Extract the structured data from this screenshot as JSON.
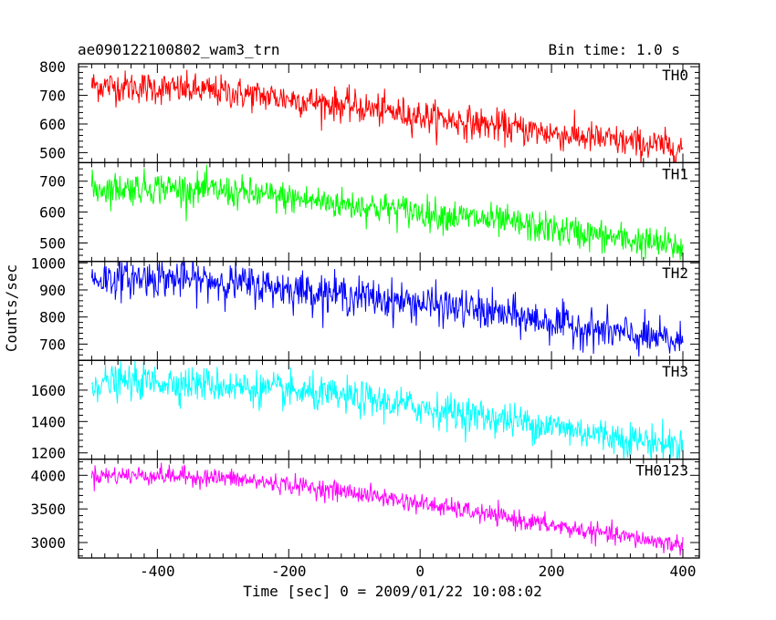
{
  "header": {
    "title": "ae090122100802_wam3_trn",
    "bin_time": "Bin time: 1.0 s"
  },
  "chart_data": {
    "type": "line",
    "layout": "stacked panels sharing x axis",
    "xlabel": "Time [sec] 0 = 2009/01/22 10:08:02",
    "ylabel": "Counts/sec",
    "xlim": [
      -520,
      425
    ],
    "x_range": [
      -500,
      400
    ],
    "x_step": 1.0,
    "x_ticks": [
      -400,
      -200,
      0,
      200,
      400
    ],
    "grid": false,
    "panels": [
      {
        "name": "TH0",
        "color": "#ff0000",
        "ylim": [
          465,
          810
        ],
        "yticks": [
          500,
          600,
          700,
          800
        ],
        "trend_x": [
          -500,
          -400,
          -300,
          -200,
          -100,
          0,
          100,
          200,
          300,
          400
        ],
        "trend_y": [
          735,
          725,
          712,
          688,
          660,
          628,
          598,
          568,
          540,
          515
        ],
        "noise": 28
      },
      {
        "name": "TH1",
        "color": "#00ff00",
        "ylim": [
          440,
          760
        ],
        "yticks": [
          500,
          600,
          700
        ],
        "trend_x": [
          -500,
          -400,
          -300,
          -200,
          -100,
          0,
          100,
          200,
          300,
          400
        ],
        "trend_y": [
          675,
          680,
          668,
          645,
          622,
          600,
          575,
          545,
          515,
          485
        ],
        "noise": 26
      },
      {
        "name": "TH2",
        "color": "#0000ff",
        "ylim": [
          640,
          1005
        ],
        "yticks": [
          700,
          800,
          900,
          1000
        ],
        "trend_x": [
          -500,
          -400,
          -300,
          -200,
          -100,
          0,
          100,
          200,
          300,
          400
        ],
        "trend_y": [
          940,
          945,
          930,
          905,
          878,
          850,
          820,
          780,
          740,
          705
        ],
        "noise": 35
      },
      {
        "name": "TH3",
        "color": "#00ffff",
        "ylim": [
          1160,
          1790
        ],
        "yticks": [
          1200,
          1400,
          1600
        ],
        "trend_x": [
          -500,
          -400,
          -300,
          -200,
          -100,
          0,
          100,
          200,
          300,
          400
        ],
        "trend_y": [
          1645,
          1655,
          1630,
          1590,
          1550,
          1490,
          1430,
          1370,
          1300,
          1245
        ],
        "noise": 55
      },
      {
        "name": "TH0123",
        "color": "#ff00ff",
        "ylim": [
          2770,
          4240
        ],
        "yticks": [
          3000,
          3500,
          4000
        ],
        "trend_x": [
          -500,
          -400,
          -300,
          -200,
          -100,
          0,
          100,
          200,
          300,
          400
        ],
        "trend_y": [
          4000,
          4000,
          3960,
          3860,
          3740,
          3580,
          3420,
          3250,
          3100,
          2960
        ],
        "noise": 70
      }
    ]
  }
}
